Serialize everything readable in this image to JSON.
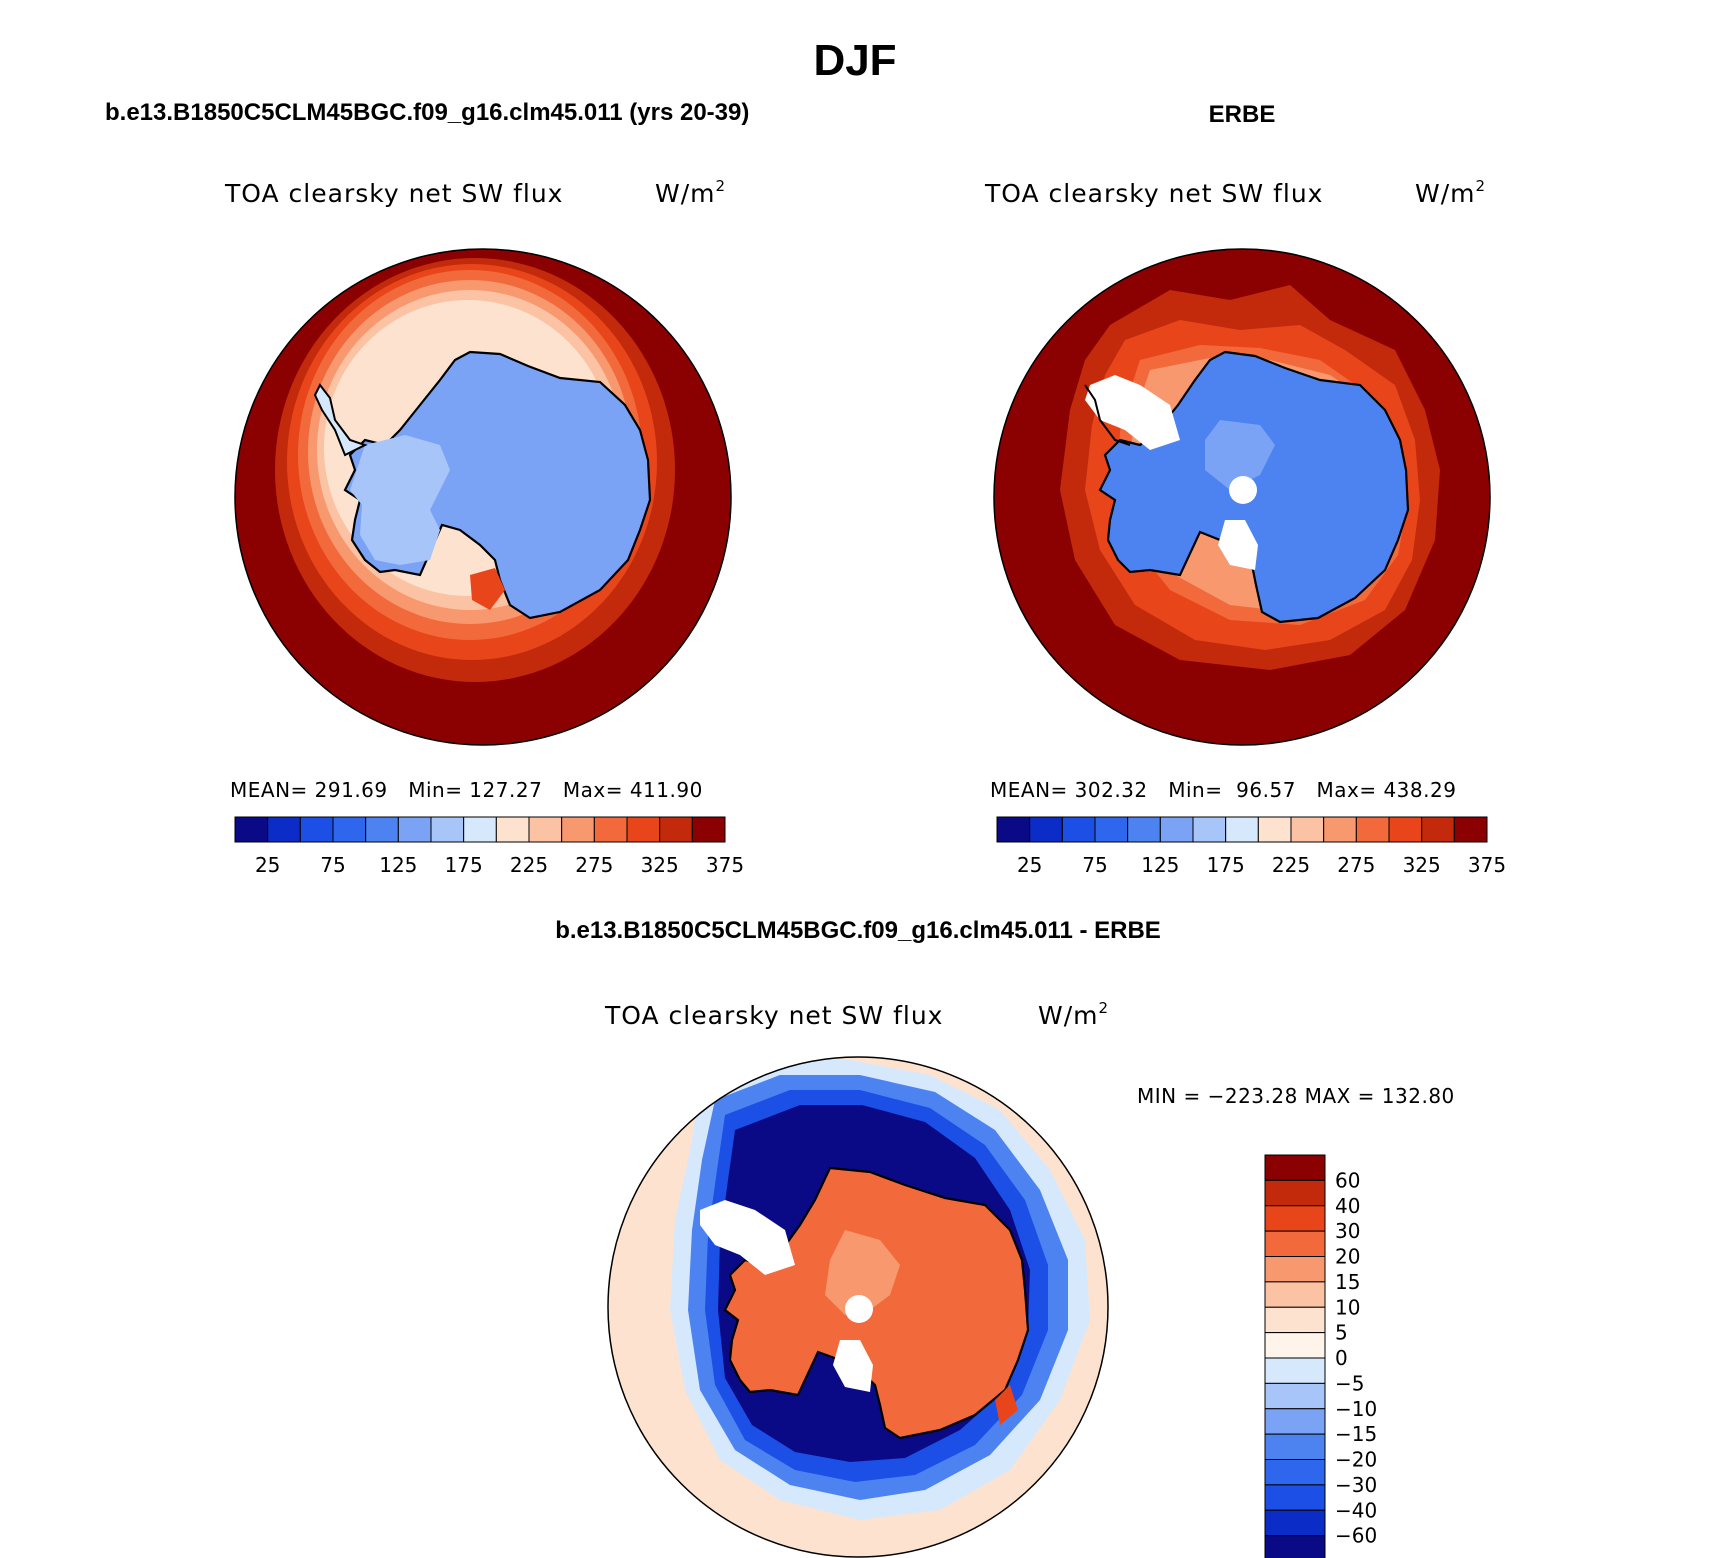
{
  "main_title": "DJF",
  "panels": [
    {
      "name": "model",
      "header": "b.e13.B1850C5CLM45BGC.f09_g16.clm45.011 (yrs 20-39)",
      "variable": "TOA clearsky net SW flux",
      "units_base": "W/m",
      "units_exp": "2",
      "stats": "MEAN= 291.69   Min= 127.27   Max= 411.90"
    },
    {
      "name": "obs",
      "header": "ERBE",
      "variable": "TOA clearsky net SW flux",
      "units_base": "W/m",
      "units_exp": "2",
      "stats": "MEAN= 302.32   Min=  96.57   Max= 438.29"
    },
    {
      "name": "diff",
      "header": "b.e13.B1850C5CLM45BGC.f09_g16.clm45.011 - ERBE",
      "variable": "TOA clearsky net SW flux",
      "units_base": "W/m",
      "units_exp": "2",
      "stats": "MIN = −223.28 MAX = 132.80"
    }
  ],
  "chart_data": [
    {
      "type": "heatmap",
      "projection": "south-polar-stereographic",
      "title": "b.e13.B1850C5CLM45BGC.f09_g16.clm45.011 (yrs 20-39)",
      "variable": "TOA clearsky net SW flux",
      "units": "W/m2",
      "mean": 291.69,
      "min": 127.27,
      "max": 411.9,
      "colorbar": {
        "orientation": "horizontal",
        "levels": [
          25,
          50,
          75,
          100,
          125,
          150,
          175,
          200,
          225,
          250,
          275,
          300,
          325,
          350,
          375
        ],
        "tick_labels": [
          "25",
          "75",
          "125",
          "175",
          "225",
          "275",
          "325",
          "375"
        ],
        "colors": [
          "#0a0a87",
          "#0c2cc7",
          "#1b4fe6",
          "#2f66ee",
          "#4d83f0",
          "#7aa3f6",
          "#a8c5fa",
          "#d6e8fc",
          "#fde3cf",
          "#fbc3a3",
          "#f8986f",
          "#f26a3c",
          "#e8451b",
          "#c22a0b",
          "#8b0000"
        ]
      }
    },
    {
      "type": "heatmap",
      "projection": "south-polar-stereographic",
      "title": "ERBE",
      "variable": "TOA clearsky net SW flux",
      "units": "W/m2",
      "mean": 302.32,
      "min": 96.57,
      "max": 438.29,
      "colorbar": {
        "orientation": "horizontal",
        "levels": [
          25,
          50,
          75,
          100,
          125,
          150,
          175,
          200,
          225,
          250,
          275,
          300,
          325,
          350,
          375
        ],
        "tick_labels": [
          "25",
          "75",
          "125",
          "175",
          "225",
          "275",
          "325",
          "375"
        ],
        "colors": [
          "#0a0a87",
          "#0c2cc7",
          "#1b4fe6",
          "#2f66ee",
          "#4d83f0",
          "#7aa3f6",
          "#a8c5fa",
          "#d6e8fc",
          "#fde3cf",
          "#fbc3a3",
          "#f8986f",
          "#f26a3c",
          "#e8451b",
          "#c22a0b",
          "#8b0000"
        ]
      }
    },
    {
      "type": "heatmap",
      "projection": "south-polar-stereographic",
      "title": "b.e13.B1850C5CLM45BGC.f09_g16.clm45.011 - ERBE",
      "variable": "TOA clearsky net SW flux",
      "units": "W/m2",
      "min": -223.28,
      "max": 132.8,
      "colorbar": {
        "orientation": "vertical",
        "levels": [
          60,
          40,
          30,
          20,
          15,
          10,
          5,
          0,
          -5,
          -10,
          -15,
          -20,
          -30,
          -40,
          -60
        ],
        "tick_labels": [
          "60",
          "40",
          "30",
          "20",
          "15",
          "10",
          "5",
          "0",
          "−5",
          "−10",
          "−15",
          "−20",
          "−30",
          "−40",
          "−60"
        ],
        "colors": [
          "#8b0000",
          "#c22a0b",
          "#e8451b",
          "#f26a3c",
          "#f8986f",
          "#fbc3a3",
          "#fde3cf",
          "#fff4ea",
          "#d6e8fc",
          "#a8c5fa",
          "#7aa3f6",
          "#4d83f0",
          "#2f66ee",
          "#1b4fe6",
          "#0c2cc7",
          "#0a0a87"
        ]
      }
    }
  ]
}
